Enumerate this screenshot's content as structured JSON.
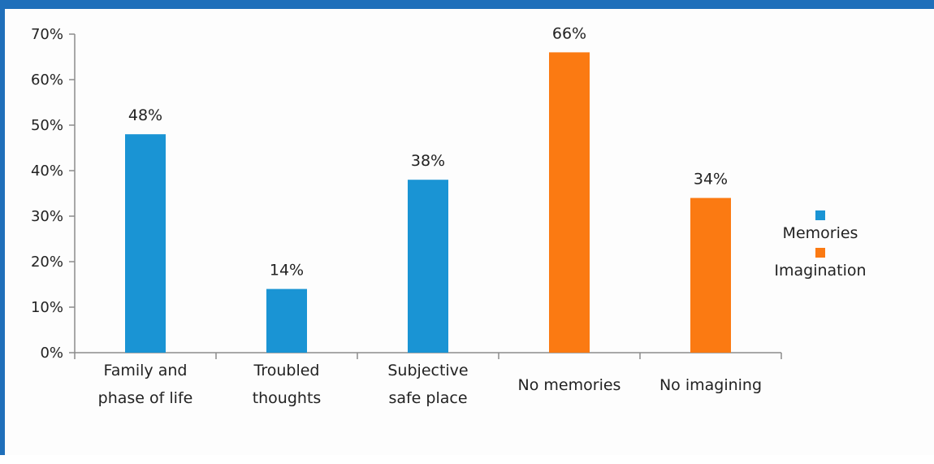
{
  "chart_data": {
    "type": "bar",
    "categories": [
      [
        "Family and",
        "phase of life"
      ],
      [
        "Troubled",
        "thoughts"
      ],
      [
        "Subjective",
        "safe place"
      ],
      [
        "No memories"
      ],
      [
        "No imagining"
      ]
    ],
    "bars": [
      {
        "category_index": 0,
        "series": "Memories",
        "value": 48,
        "label": "48%"
      },
      {
        "category_index": 1,
        "series": "Memories",
        "value": 14,
        "label": "14%"
      },
      {
        "category_index": 2,
        "series": "Memories",
        "value": 38,
        "label": "38%"
      },
      {
        "category_index": 3,
        "series": "Imagination",
        "value": 66,
        "label": "66%"
      },
      {
        "category_index": 4,
        "series": "Imagination",
        "value": 34,
        "label": "34%"
      }
    ],
    "series": [
      {
        "name": "Memories",
        "color": "#1a94d4"
      },
      {
        "name": "Imagination",
        "color": "#fb7a12"
      }
    ],
    "yticks": [
      "0%",
      "10%",
      "20%",
      "30%",
      "40%",
      "50%",
      "60%",
      "70%"
    ],
    "ylim": [
      0,
      70
    ],
    "title": "",
    "xlabel": "",
    "ylabel": "",
    "legend_position": "right",
    "grid": false
  }
}
